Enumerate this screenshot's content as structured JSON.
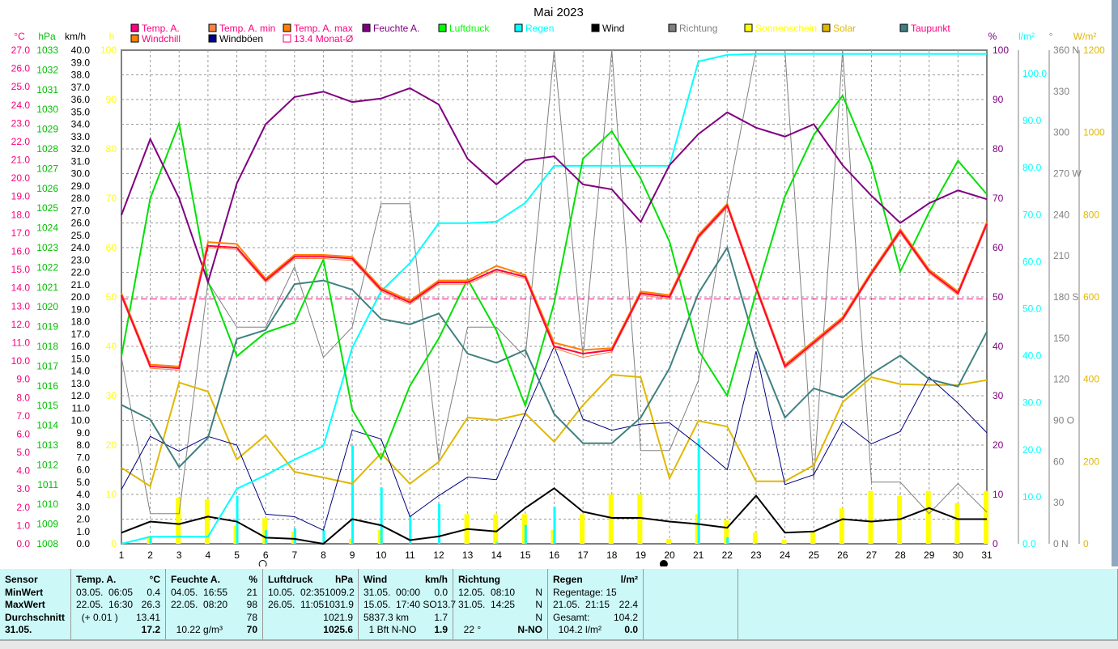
{
  "chart_data": {
    "type": "line",
    "title": "Mai 2023",
    "x": [
      1,
      2,
      3,
      4,
      5,
      6,
      7,
      8,
      9,
      10,
      11,
      12,
      13,
      14,
      15,
      16,
      17,
      18,
      19,
      20,
      21,
      22,
      23,
      24,
      25,
      26,
      27,
      28,
      29,
      30,
      31
    ],
    "legend": [
      {
        "name": "Temp. A.",
        "color": "#ff0080",
        "text_color": "#ff0080"
      },
      {
        "name": "Temp. A. min",
        "color": "#ff8040",
        "text_color": "#ff0080"
      },
      {
        "name": "Temp. A. max",
        "color": "#ff8000",
        "text_color": "#ff0080"
      },
      {
        "name": "Feuchte A.",
        "color": "#800080",
        "text_color": "#800080"
      },
      {
        "name": "Luftdruck",
        "color": "#00ff00",
        "text_color": "#00ff00"
      },
      {
        "name": "Regen",
        "color": "#00ffff",
        "text_color": "#00ffff"
      },
      {
        "name": "Wind",
        "color": "#000000",
        "text_color": "#000000"
      },
      {
        "name": "Richtung",
        "color": "#808080",
        "text_color": "#808080"
      },
      {
        "name": "Sonnenschein",
        "color": "#ffff00",
        "text_color": "#ffff00"
      },
      {
        "name": "Solar",
        "color": "#e0b800",
        "text_color": "#e0b800"
      },
      {
        "name": "Taupunkt",
        "color": "#408080",
        "text_color": "#ff0080"
      },
      {
        "name": "Windchill",
        "color": "#ff8000",
        "text_color": "#ff0080"
      },
      {
        "name": "Windböen",
        "color": "#000080",
        "text_color": "#000000"
      },
      {
        "name": "13.4 Monat-Ø",
        "color": "#ff0080",
        "text_color": "#ff0080",
        "outline": true
      }
    ],
    "axes": {
      "temp": {
        "unit": "°C",
        "range": [
          0,
          27
        ],
        "color": "#ff0080",
        "ticks": [
          "27.0",
          "26.0",
          "25.0",
          "24.0",
          "23.0",
          "22.0",
          "21.0",
          "20.0",
          "19.0",
          "18.0",
          "17.0",
          "16.0",
          "15.0",
          "14.0",
          "13.0",
          "12.0",
          "11.0",
          "10.0",
          "9.0",
          "8.0",
          "7.0",
          "6.0",
          "5.0",
          "4.0",
          "3.0",
          "2.0",
          "1.0",
          "0.0"
        ]
      },
      "pressure": {
        "unit": "hPa",
        "range": [
          1008,
          1033
        ],
        "color": "#00c000",
        "ticks": [
          "1033",
          "1032",
          "1031",
          "1030",
          "1029",
          "1028",
          "1027",
          "1026",
          "1025",
          "1024",
          "1023",
          "1022",
          "1021",
          "1020",
          "1019",
          "1018",
          "1017",
          "1016",
          "1015",
          "1014",
          "1013",
          "1012",
          "1011",
          "1010",
          "1009",
          "1008"
        ]
      },
      "wind": {
        "unit": "km/h",
        "range": [
          0,
          40
        ],
        "color": "#000000",
        "ticks": [
          "40.0",
          "39.0",
          "38.0",
          "37.0",
          "36.0",
          "35.0",
          "34.0",
          "33.0",
          "32.0",
          "31.0",
          "30.0",
          "29.0",
          "28.0",
          "27.0",
          "26.0",
          "25.0",
          "24.0",
          "23.0",
          "22.0",
          "21.0",
          "20.0",
          "19.0",
          "18.0",
          "17.0",
          "16.0",
          "15.0",
          "14.0",
          "13.0",
          "12.0",
          "11.0",
          "10.0",
          "9.0",
          "8.0",
          "7.0",
          "6.0",
          "5.0",
          "4.0",
          "3.0",
          "2.0",
          "1.0",
          "0.0"
        ]
      },
      "sunshine": {
        "unit": "h",
        "range": [
          0,
          100
        ],
        "color": "#ffff00",
        "ticks": [
          "100",
          "90",
          "80",
          "70",
          "60",
          "50",
          "40",
          "30",
          "20",
          "10",
          "0"
        ]
      },
      "humidity": {
        "unit": "%",
        "range": [
          0,
          100
        ],
        "color": "#800080",
        "ticks": [
          "100",
          "90",
          "80",
          "70",
          "60",
          "50",
          "40",
          "30",
          "20",
          "10",
          "0"
        ]
      },
      "rain": {
        "unit": "l/m²",
        "range": [
          0,
          105
        ],
        "color": "#00ffff",
        "ticks": [
          "100.0",
          "90.0",
          "80.0",
          "70.0",
          "60.0",
          "50.0",
          "40.0",
          "30.0",
          "20.0",
          "10.0",
          "0.0"
        ]
      },
      "direction": {
        "unit": "°",
        "range": [
          0,
          360
        ],
        "color": "#808080",
        "ticks": [
          "360 N",
          "330",
          "300",
          "270 W",
          "240",
          "210",
          "180 S",
          "150",
          "120",
          "90 O",
          "60",
          "30",
          "0 N"
        ]
      },
      "solar": {
        "unit": "W/m²",
        "range": [
          0,
          1200
        ],
        "color": "#e0b800",
        "ticks": [
          "1200",
          "1000",
          "800",
          "600",
          "400",
          "200",
          "0"
        ]
      }
    },
    "series": {
      "temp": [
        13.6,
        9.7,
        9.6,
        16.3,
        16.2,
        14.4,
        15.7,
        15.7,
        15.6,
        13.9,
        13.2,
        14.3,
        14.3,
        15.0,
        14.6,
        10.8,
        10.4,
        10.6,
        13.7,
        13.5,
        16.8,
        18.5,
        14.0,
        9.7,
        11.0,
        12.3,
        14.8,
        17.1,
        14.9,
        13.7,
        17.5
      ],
      "temp_min": [
        13.5,
        9.6,
        9.5,
        16.2,
        16.1,
        14.3,
        15.6,
        15.6,
        15.5,
        13.8,
        13.1,
        14.2,
        14.2,
        14.9,
        14.5,
        10.7,
        10.2,
        10.5,
        13.6,
        13.4,
        16.7,
        18.4,
        13.9,
        9.6,
        10.9,
        12.2,
        14.7,
        17.0,
        14.8,
        13.6,
        17.4
      ],
      "temp_max": [
        13.7,
        9.8,
        9.7,
        16.5,
        16.4,
        14.5,
        15.8,
        15.8,
        15.7,
        14.0,
        13.3,
        14.4,
        14.4,
        15.2,
        14.7,
        11.0,
        10.6,
        10.7,
        13.8,
        13.6,
        16.9,
        18.6,
        14.1,
        9.8,
        11.1,
        12.4,
        14.9,
        17.2,
        15.0,
        13.8,
        17.6
      ],
      "humidity": [
        66.6,
        82,
        70,
        53,
        73,
        85,
        90.5,
        91.6,
        89.5,
        90.2,
        92.3,
        89,
        78,
        72.8,
        77.7,
        78.5,
        72.8,
        71.8,
        65.2,
        76.7,
        83,
        87.4,
        84.3,
        82.5,
        85,
        76.7,
        70.5,
        65,
        69,
        71.6,
        69.8
      ],
      "pressure": [
        1017.5,
        1025.5,
        1029.3,
        1021.3,
        1017.5,
        1018.7,
        1019.2,
        1022.4,
        1014.8,
        1012.3,
        1016,
        1018.4,
        1021.4,
        1018.8,
        1015,
        1020.2,
        1027.5,
        1028.9,
        1026.5,
        1023.3,
        1017.8,
        1015.5,
        1020.7,
        1025.6,
        1028.7,
        1030.7,
        1027.2,
        1021.8,
        1024.8,
        1027.4,
        1025.7
      ],
      "rain_cumulative": [
        0,
        1.5,
        1.5,
        1.5,
        11.7,
        14.6,
        17.9,
        20.8,
        41.7,
        53.7,
        59.7,
        68.2,
        68.2,
        68.5,
        72.5,
        80.4,
        80.4,
        80.4,
        80.4,
        80.4,
        102.6,
        104.0,
        104.2,
        104.2,
        104.2,
        104.2,
        104.2,
        104.2,
        104.2,
        104.2,
        104.2
      ],
      "rain_daily": [
        0,
        1.5,
        0,
        0,
        10.2,
        2.9,
        3.3,
        2.9,
        20.9,
        12.0,
        6.0,
        8.5,
        0,
        0.3,
        4.0,
        7.9,
        0,
        0,
        0,
        0,
        22.4,
        1.4,
        0.2,
        0,
        0,
        0,
        0,
        0,
        0,
        0,
        0
      ],
      "wind": [
        0.9,
        1.8,
        1.6,
        2.2,
        1.8,
        0.5,
        0.4,
        0,
        2.0,
        1.5,
        0.3,
        0.6,
        1.2,
        1.0,
        2.9,
        4.5,
        2.6,
        2.1,
        2.1,
        1.8,
        1.6,
        1.3,
        3.9,
        0.9,
        1.0,
        2.0,
        1.8,
        2.0,
        2.9,
        2.0,
        2.0
      ],
      "gusts": [
        4.4,
        8.7,
        7.5,
        8.7,
        8.0,
        2.4,
        2.2,
        1.1,
        9.2,
        8.5,
        2.2,
        3.9,
        5.4,
        5.2,
        10.6,
        16,
        10.1,
        9.2,
        9.7,
        9.8,
        8,
        6,
        15.6,
        4.8,
        5.6,
        9.9,
        8.1,
        9.1,
        13.5,
        11.4,
        9.0
      ],
      "direction": [
        136,
        22,
        22,
        191,
        158,
        158,
        202,
        136,
        158,
        248,
        248,
        61,
        158,
        158,
        136,
        360,
        137,
        360,
        68,
        68,
        119,
        250,
        360,
        360,
        47,
        360,
        45,
        45,
        22,
        44,
        23
      ],
      "sunshine": [
        0,
        1.6,
        9.3,
        9,
        3.6,
        5.2,
        2.5,
        0,
        1,
        2.8,
        0,
        0,
        6,
        6,
        6,
        2.8,
        6,
        10,
        10,
        1,
        6,
        4.8,
        2.3,
        0.8,
        2.3,
        7.2,
        10.7,
        9.7,
        10.7,
        8.2,
        10.7
      ],
      "solar": [
        185,
        140,
        392,
        370,
        205,
        264,
        175,
        161,
        146,
        220,
        146,
        199,
        307,
        301,
        317,
        248,
        337,
        411,
        405,
        159,
        299,
        285,
        152,
        152,
        191,
        344,
        405,
        388,
        386,
        386,
        398
      ],
      "dewpoint": [
        7.6,
        6.8,
        4.2,
        5.8,
        11.2,
        11.7,
        14.2,
        14.4,
        13.9,
        12.3,
        12.0,
        12.6,
        10.4,
        9.9,
        10.6,
        7.1,
        5.5,
        5.5,
        6.9,
        9.6,
        13.7,
        16.2,
        10.8,
        6.9,
        8.5,
        8.0,
        9.3,
        10.3,
        9.0,
        8.6,
        11.6
      ]
    },
    "month_avg_temp": 13.4,
    "moon_phases": [
      {
        "day": 5.9,
        "phase": "full"
      },
      {
        "day": 19.8,
        "phase": "new"
      }
    ],
    "grid": true
  },
  "table": [
    {
      "rows": [
        [
          "Sensor",
          ""
        ],
        [
          "MinWert",
          ""
        ],
        [
          "MaxWert",
          ""
        ],
        [
          "Durchschnitt",
          ""
        ],
        [
          "31.05.",
          ""
        ]
      ],
      "cls": "sensor",
      "w": 88
    },
    {
      "rows": [
        [
          "Temp. A.",
          "°C"
        ],
        [
          "03.05.  06:05",
          "0.4"
        ],
        [
          "22.05.  16:30",
          "26.3"
        ],
        [
          "  (+ 0.01 )",
          "13.41"
        ],
        [
          "",
          "17.2"
        ]
      ],
      "w": 117
    },
    {
      "rows": [
        [
          "Feuchte A.",
          "%"
        ],
        [
          "04.05.  16:55",
          "21"
        ],
        [
          "22.05.  08:20",
          "98"
        ],
        [
          "",
          "78"
        ],
        [
          "  10.22 g/m³",
          "70"
        ]
      ],
      "w": 120
    },
    {
      "rows": [
        [
          "Luftdruck",
          "hPa"
        ],
        [
          "10.05.  02:35",
          "1009.2"
        ],
        [
          "26.05.  11:05",
          "1031.9"
        ],
        [
          "",
          "1021.9"
        ],
        [
          "",
          "1025.6"
        ]
      ],
      "w": 118
    },
    {
      "rows": [
        [
          "Wind",
          "km/h"
        ],
        [
          "31.05.  00:00",
          "0.0"
        ],
        [
          "15.05.  17:40 SO",
          "13.7"
        ],
        [
          "5837.3 km",
          "1.7"
        ],
        [
          "  1 Bft N-NO",
          "1.9"
        ]
      ],
      "w": 117
    },
    {
      "rows": [
        [
          "Richtung",
          ""
        ],
        [
          "12.05.  08:10",
          "N"
        ],
        [
          "31.05.  14:25",
          "N"
        ],
        [
          "",
          "N"
        ],
        [
          "  22 °",
          "N-NO"
        ]
      ],
      "w": 117
    },
    {
      "rows": [
        [
          "Regen",
          "l/m²"
        ],
        [
          "Regentage: 15",
          ""
        ],
        [
          "21.05.  21:15",
          "22.4"
        ],
        [
          "Gesamt:",
          "104.2"
        ],
        [
          "  104.2 l/m²",
          "0.0"
        ]
      ],
      "w": 118
    },
    {
      "rows": [],
      "w": 117
    },
    {
      "rows": [],
      "w": 469
    }
  ]
}
